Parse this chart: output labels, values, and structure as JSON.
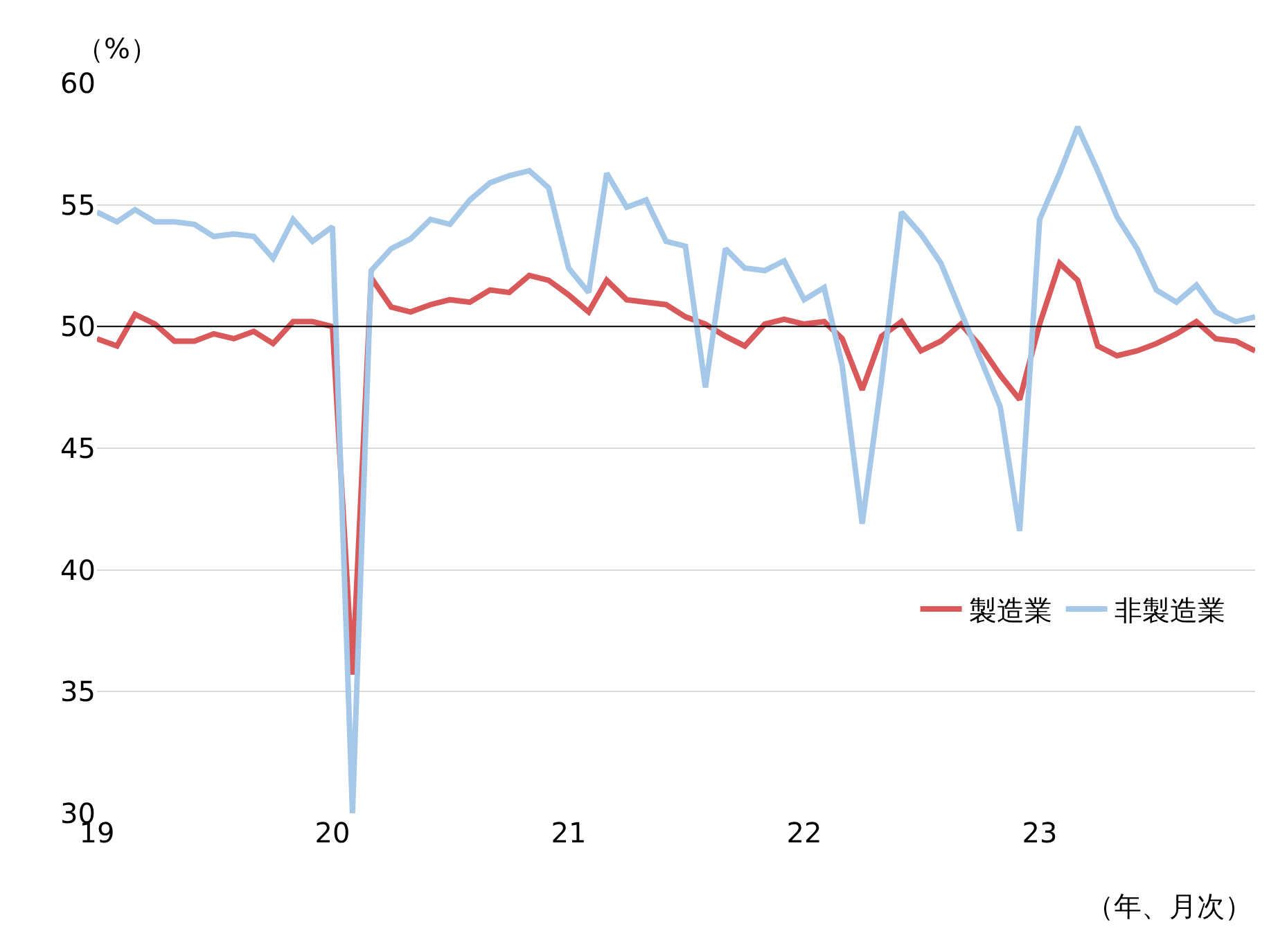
{
  "chart_data": {
    "type": "line",
    "ylabel": "（%）",
    "xlabel": "（年、月次）",
    "x": [
      "2019-01",
      "2019-02",
      "2019-03",
      "2019-04",
      "2019-05",
      "2019-06",
      "2019-07",
      "2019-08",
      "2019-09",
      "2019-10",
      "2019-11",
      "2019-12",
      "2020-01",
      "2020-02",
      "2020-03",
      "2020-04",
      "2020-05",
      "2020-06",
      "2020-07",
      "2020-08",
      "2020-09",
      "2020-10",
      "2020-11",
      "2020-12",
      "2021-01",
      "2021-02",
      "2021-03",
      "2021-04",
      "2021-05",
      "2021-06",
      "2021-07",
      "2021-08",
      "2021-09",
      "2021-10",
      "2021-11",
      "2021-12",
      "2022-01",
      "2022-02",
      "2022-03",
      "2022-04",
      "2022-05",
      "2022-06",
      "2022-07",
      "2022-08",
      "2022-09",
      "2022-10",
      "2022-11",
      "2022-12",
      "2023-01",
      "2023-02",
      "2023-03",
      "2023-04",
      "2023-05",
      "2023-06",
      "2023-07",
      "2023-08",
      "2023-09",
      "2023-10",
      "2023-11",
      "2023-12"
    ],
    "series": [
      {
        "name": "製造業",
        "color": "#d9585a",
        "values": [
          49.5,
          49.2,
          50.5,
          50.1,
          49.4,
          49.4,
          49.7,
          49.5,
          49.8,
          49.3,
          50.2,
          50.2,
          50.0,
          35.7,
          52.0,
          50.8,
          50.6,
          50.9,
          51.1,
          51.0,
          51.5,
          51.4,
          52.1,
          51.9,
          51.3,
          50.6,
          51.9,
          51.1,
          51.0,
          50.9,
          50.4,
          50.1,
          49.6,
          49.2,
          50.1,
          50.3,
          50.1,
          50.2,
          49.5,
          47.4,
          49.6,
          50.2,
          49.0,
          49.4,
          50.1,
          49.2,
          48.0,
          47.0,
          50.1,
          52.6,
          51.9,
          49.2,
          48.8,
          49.0,
          49.3,
          49.7,
          50.2,
          49.5,
          49.4,
          49.0
        ]
      },
      {
        "name": "非製造業",
        "color": "#a6c8e8",
        "values": [
          54.7,
          54.3,
          54.8,
          54.3,
          54.3,
          54.2,
          53.7,
          53.8,
          53.7,
          52.8,
          54.4,
          53.5,
          54.1,
          30.0,
          52.3,
          53.2,
          53.6,
          54.4,
          54.2,
          55.2,
          55.9,
          56.2,
          56.4,
          55.7,
          52.4,
          51.4,
          56.3,
          54.9,
          55.2,
          53.5,
          53.3,
          47.5,
          53.2,
          52.4,
          52.3,
          52.7,
          51.1,
          51.6,
          48.4,
          41.9,
          47.8,
          54.7,
          53.8,
          52.6,
          50.6,
          48.7,
          46.7,
          41.6,
          54.4,
          56.3,
          58.2,
          56.4,
          54.5,
          53.2,
          51.5,
          51.0,
          51.7,
          50.6,
          50.2,
          50.4
        ]
      }
    ],
    "xlim": [
      "2019-01",
      "2023-12"
    ],
    "xticks": [
      {
        "value": "2019-01",
        "label": "19"
      },
      {
        "value": "2020-01",
        "label": "20"
      },
      {
        "value": "2021-01",
        "label": "21"
      },
      {
        "value": "2022-01",
        "label": "22"
      },
      {
        "value": "2023-01",
        "label": "23"
      }
    ],
    "ylim": [
      30,
      60
    ],
    "yticks": [
      30,
      35,
      40,
      45,
      50,
      55,
      60
    ],
    "ref_lines": [
      {
        "axis": "y",
        "value": 50,
        "color": "#000000"
      }
    ],
    "grid": "y",
    "legend": "right",
    "marker": "none",
    "line_style": "solid"
  }
}
